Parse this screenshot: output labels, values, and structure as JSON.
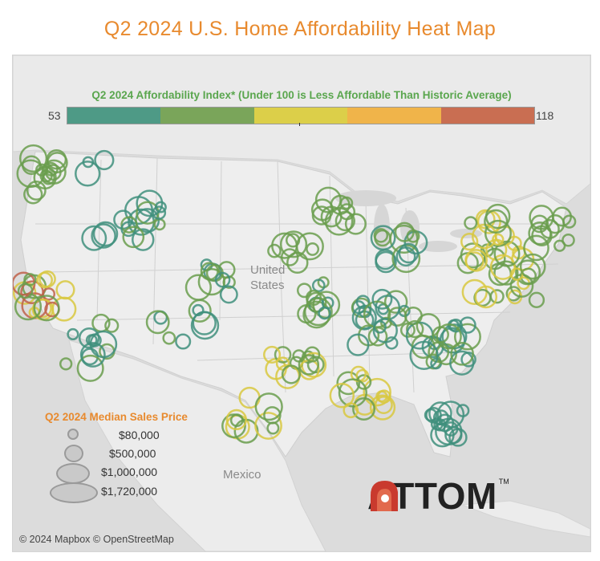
{
  "title": "Q2 2024 U.S. Home Affordability Heat Map",
  "color_legend": {
    "title": "Q2 2024 Affordability Index* (Under 100 is Less Affordable Than Historic Average)",
    "min": "53",
    "max": "118",
    "colors": [
      "#4e9a86",
      "#7aa55a",
      "#dccf49",
      "#f0b44a",
      "#c96e52"
    ]
  },
  "size_legend": {
    "title": "Q2 2024 Median Sales Price",
    "items": [
      "$80,000",
      "$500,000",
      "$1,000,000",
      "$1,720,000"
    ]
  },
  "map_labels": {
    "country_1_line1": "United",
    "country_1_line2": "States",
    "country_2": "Mexico"
  },
  "copyright": "© 2024 Mapbox © OpenStreetMap",
  "logo": "ATTOM",
  "logo_tm": "TM",
  "symbol_colors": {
    "teal": "#3f8f7c",
    "green": "#6a9e4e",
    "yellow": "#d8c83f",
    "orange": "#e9a93e",
    "red": "#c0614a"
  }
}
